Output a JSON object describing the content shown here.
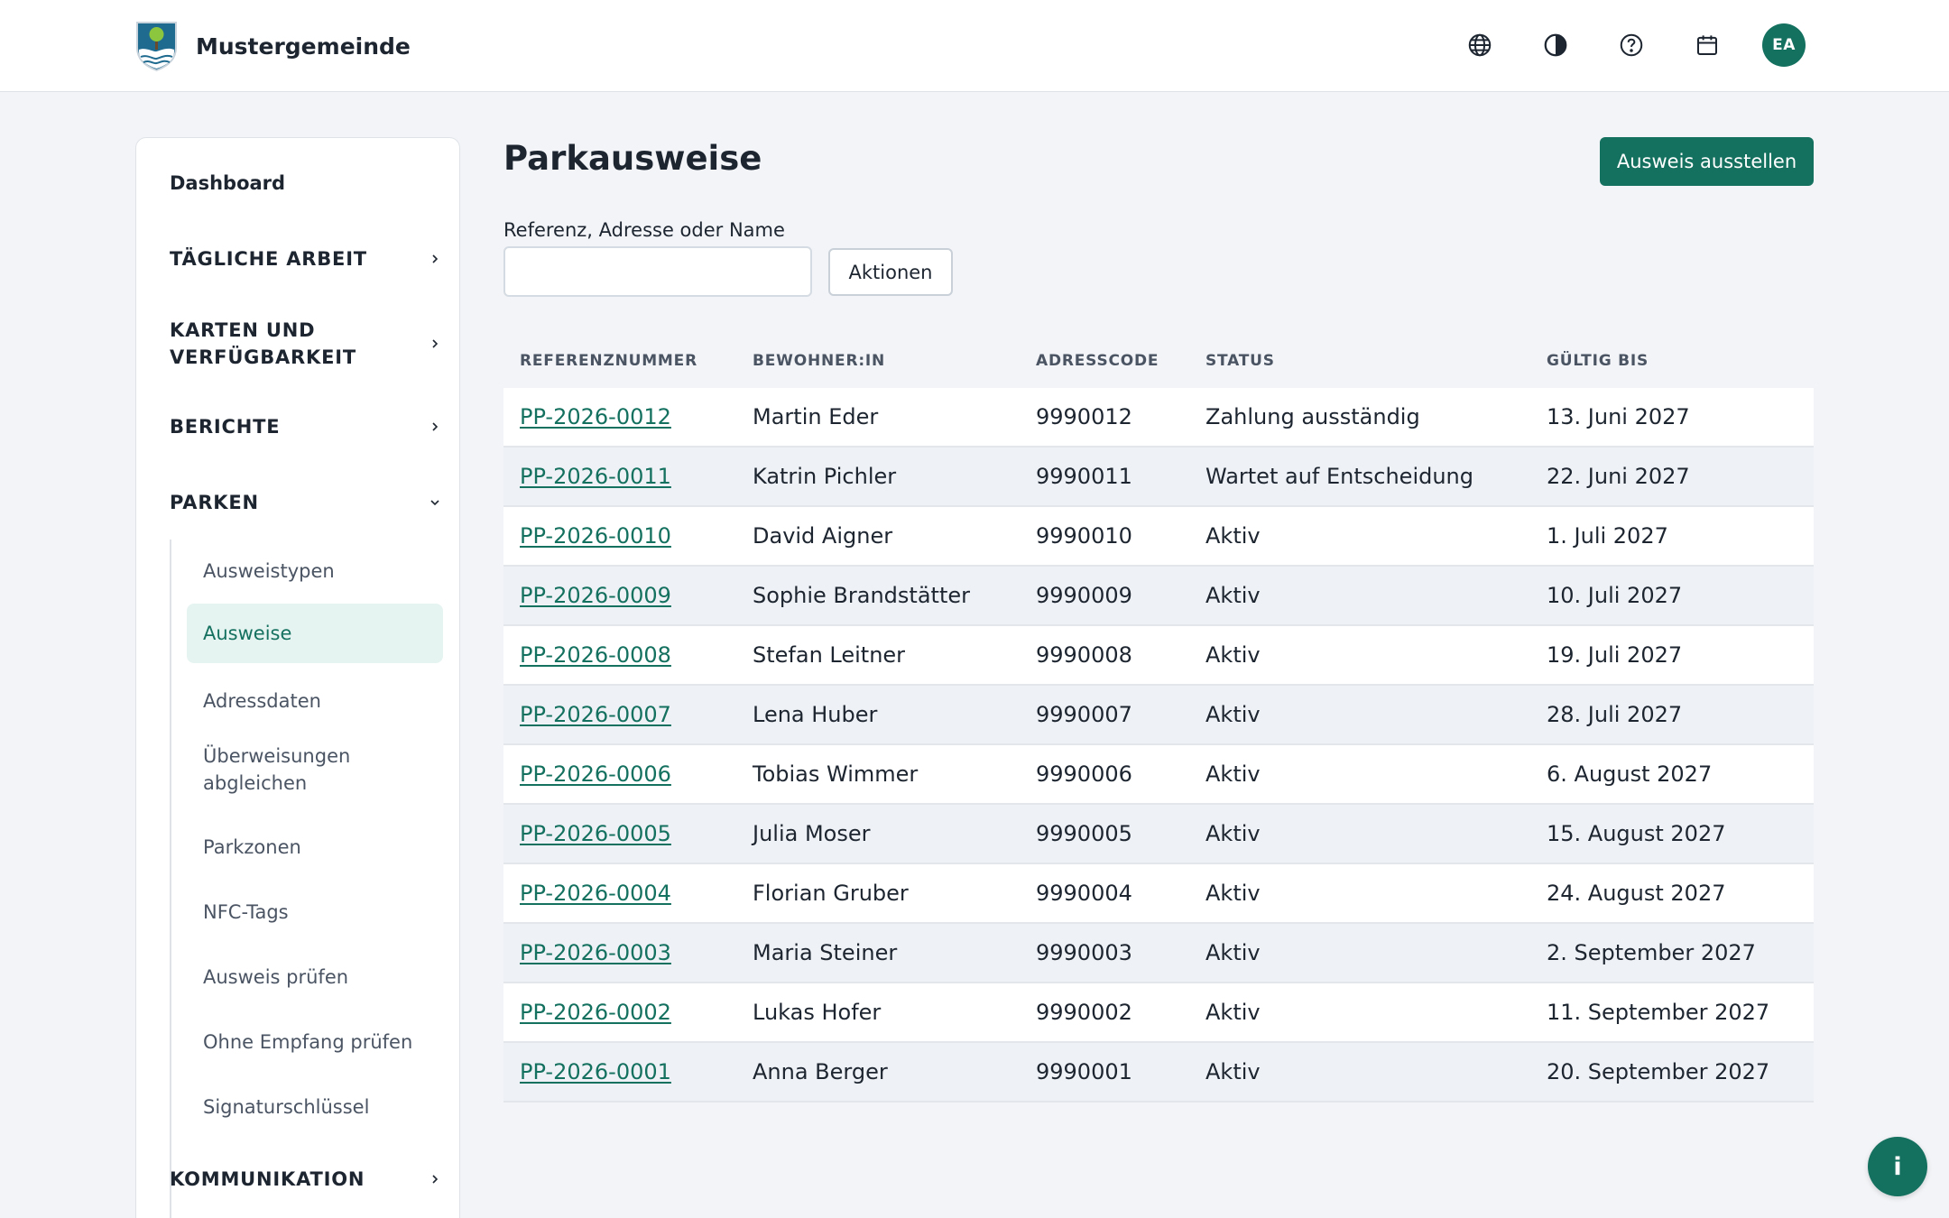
{
  "header": {
    "brand_name": "Mustergemeinde",
    "avatar_initials": "EA",
    "icons": [
      "globe-icon",
      "contrast-icon",
      "help-icon",
      "calendar-icon"
    ]
  },
  "sidebar": {
    "dashboard": "Dashboard",
    "sections": {
      "daily": "TÄGLICHE ARBEIT",
      "maps": "KARTEN UND VERFÜGBARKEIT",
      "reports": "BERICHTE",
      "parking": "PARKEN",
      "communication": "KOMMUNIKATION"
    },
    "parking_items": [
      "Ausweistypen",
      "Ausweise",
      "Adressdaten",
      "Überweisungen abgleichen",
      "Parkzonen",
      "NFC-Tags",
      "Ausweis prüfen",
      "Ohne Empfang prüfen",
      "Signaturschlüssel"
    ],
    "active_item": "Ausweise"
  },
  "main": {
    "title": "Parkausweise",
    "primary_button": "Ausweis ausstellen",
    "search_label": "Referenz, Adresse oder Name",
    "search_value": "",
    "actions_button": "Aktionen"
  },
  "table": {
    "columns": [
      "REFERENZNUMMER",
      "BEWOHNER:IN",
      "ADRESSCODE",
      "STATUS",
      "GÜLTIG BIS"
    ],
    "rows": [
      {
        "ref": "PP-2026-0012",
        "name": "Martin Eder",
        "code": "9990012",
        "status": "Zahlung ausständig",
        "valid": "13. Juni 2027"
      },
      {
        "ref": "PP-2026-0011",
        "name": "Katrin Pichler",
        "code": "9990011",
        "status": "Wartet auf Entscheidung",
        "valid": "22. Juni 2027"
      },
      {
        "ref": "PP-2026-0010",
        "name": "David Aigner",
        "code": "9990010",
        "status": "Aktiv",
        "valid": "1. Juli 2027"
      },
      {
        "ref": "PP-2026-0009",
        "name": "Sophie Brandstätter",
        "code": "9990009",
        "status": "Aktiv",
        "valid": "10. Juli 2027"
      },
      {
        "ref": "PP-2026-0008",
        "name": "Stefan Leitner",
        "code": "9990008",
        "status": "Aktiv",
        "valid": "19. Juli 2027"
      },
      {
        "ref": "PP-2026-0007",
        "name": "Lena Huber",
        "code": "9990007",
        "status": "Aktiv",
        "valid": "28. Juli 2027"
      },
      {
        "ref": "PP-2026-0006",
        "name": "Tobias Wimmer",
        "code": "9990006",
        "status": "Aktiv",
        "valid": "6. August 2027"
      },
      {
        "ref": "PP-2026-0005",
        "name": "Julia Moser",
        "code": "9990005",
        "status": "Aktiv",
        "valid": "15. August 2027"
      },
      {
        "ref": "PP-2026-0004",
        "name": "Florian Gruber",
        "code": "9990004",
        "status": "Aktiv",
        "valid": "24. August 2027"
      },
      {
        "ref": "PP-2026-0003",
        "name": "Maria Steiner",
        "code": "9990003",
        "status": "Aktiv",
        "valid": "2. September 2027"
      },
      {
        "ref": "PP-2026-0002",
        "name": "Lukas Hofer",
        "code": "9990002",
        "status": "Aktiv",
        "valid": "11. September 2027"
      },
      {
        "ref": "PP-2026-0001",
        "name": "Anna Berger",
        "code": "9990001",
        "status": "Aktiv",
        "valid": "20. September 2027"
      }
    ]
  },
  "info_button": "i",
  "colors": {
    "accent": "#14705f",
    "accent_light": "#e6f4f1",
    "background": "#f2f4f7",
    "row_alt": "#eef1f5"
  }
}
